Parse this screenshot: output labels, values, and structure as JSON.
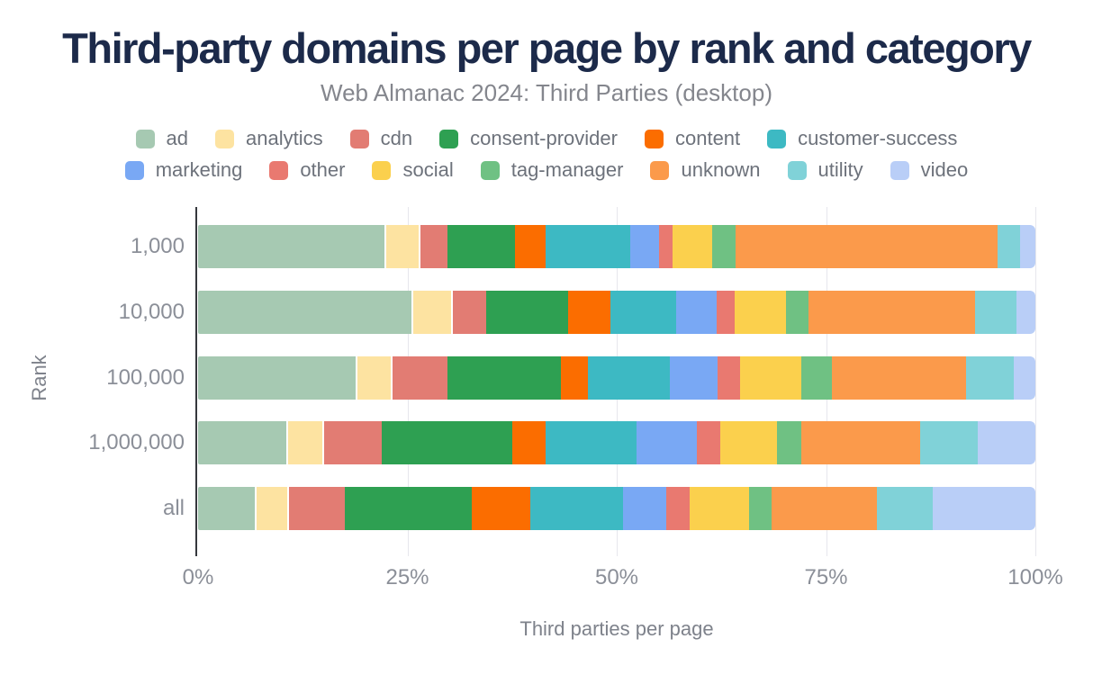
{
  "colors": {
    "background": "#ffffff",
    "title": "#1c2a4a",
    "subtitle": "#84868d",
    "legend_text": "#6d727b",
    "axis_text": "#8b8f98",
    "axis_title": "#7e828b",
    "axis_line": "#35383d",
    "gridline": "#e7e7ed"
  },
  "chart_data": {
    "type": "bar",
    "stacked": true,
    "orientation": "horizontal",
    "title": "Third-party domains per page by rank and category",
    "subtitle": "Web Almanac 2024: Third Parties (desktop)",
    "xlabel": "Third parties per page",
    "ylabel": "Rank",
    "xlim": [
      0,
      100
    ],
    "x_ticks": [
      "0%",
      "25%",
      "50%",
      "75%",
      "100%"
    ],
    "grid": "vertical",
    "legend_position": "top",
    "categories": [
      {
        "label": "ad",
        "color": "#a6c9b2"
      },
      {
        "label": "analytics",
        "color": "#fde3a1"
      },
      {
        "label": "cdn",
        "color": "#e27c73"
      },
      {
        "label": "consent-provider",
        "color": "#2ea052"
      },
      {
        "label": "content",
        "color": "#fb6d00"
      },
      {
        "label": "customer-success",
        "color": "#3db9c3"
      },
      {
        "label": "marketing",
        "color": "#79a8f4"
      },
      {
        "label": "other",
        "color": "#e97970"
      },
      {
        "label": "social",
        "color": "#fbd04d"
      },
      {
        "label": "tag-manager",
        "color": "#6fc183"
      },
      {
        "label": "unknown",
        "color": "#fb9a4b"
      },
      {
        "label": "utility",
        "color": "#80d2d8"
      },
      {
        "label": "video",
        "color": "#b9cef7"
      }
    ],
    "rows": [
      {
        "label": "1,000",
        "values": [
          22.5,
          4.1,
          3.2,
          8.0,
          3.7,
          10.1,
          3.5,
          1.6,
          4.7,
          2.8,
          31.3,
          2.7,
          1.8
        ]
      },
      {
        "label": "10,000",
        "values": [
          25.7,
          4.7,
          4.0,
          9.8,
          5.0,
          7.9,
          4.8,
          2.2,
          6.1,
          2.7,
          19.9,
          5.0,
          2.2
        ]
      },
      {
        "label": "100,000",
        "values": [
          19.0,
          4.2,
          6.6,
          13.5,
          3.3,
          9.8,
          5.6,
          2.7,
          7.3,
          3.7,
          16.0,
          5.7,
          2.6
        ]
      },
      {
        "label": "1,000,000",
        "values": [
          10.7,
          4.4,
          6.8,
          15.6,
          4.0,
          10.9,
          7.2,
          2.8,
          6.8,
          2.8,
          14.2,
          6.9,
          6.9
        ]
      },
      {
        "label": "all",
        "values": [
          7.0,
          3.9,
          6.6,
          15.2,
          7.0,
          11.1,
          5.1,
          2.8,
          7.1,
          2.7,
          12.6,
          6.7,
          12.2
        ]
      }
    ]
  }
}
